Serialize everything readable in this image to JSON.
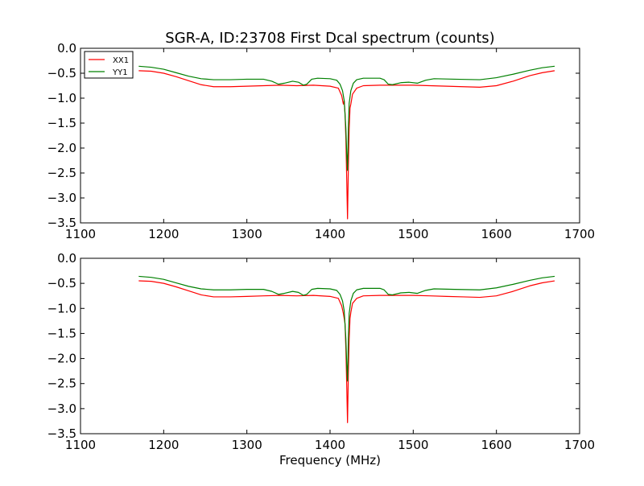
{
  "figure": {
    "title": "SGR-A, ID:23708 First Dcal spectrum (counts)",
    "background": "#ffffff"
  },
  "chart_data": [
    {
      "type": "line",
      "title": "SGR-A, ID:23708 First Dcal spectrum (counts)",
      "xlabel": "",
      "ylabel": "",
      "xlim": [
        1100,
        1700
      ],
      "ylim": [
        -3.5,
        0.0
      ],
      "x_ticks": [
        "1100",
        "1200",
        "1300",
        "1400",
        "1500",
        "1600",
        "1700"
      ],
      "y_ticks": [
        "0.0",
        "−0.5",
        "−1.0",
        "−1.5",
        "−2.0",
        "−2.5",
        "−3.0",
        "−3.5"
      ],
      "grid": false,
      "legend": {
        "placement": "top-left",
        "entries": [
          "XX1",
          "YY1"
        ]
      },
      "series": [
        {
          "name": "XX1",
          "color": "#ff0000",
          "points": [
            [
              1170,
              -0.45
            ],
            [
              1185,
              -0.46
            ],
            [
              1200,
              -0.5
            ],
            [
              1215,
              -0.57
            ],
            [
              1230,
              -0.65
            ],
            [
              1245,
              -0.73
            ],
            [
              1260,
              -0.77
            ],
            [
              1280,
              -0.77
            ],
            [
              1300,
              -0.76
            ],
            [
              1320,
              -0.75
            ],
            [
              1340,
              -0.74
            ],
            [
              1360,
              -0.75
            ],
            [
              1380,
              -0.74
            ],
            [
              1400,
              -0.76
            ],
            [
              1410,
              -0.8
            ],
            [
              1414,
              -0.95
            ],
            [
              1416,
              -1.12
            ],
            [
              1417,
              -1.05
            ],
            [
              1418,
              -1.3
            ],
            [
              1419,
              -1.8
            ],
            [
              1420,
              -2.6
            ],
            [
              1421,
              -3.42
            ],
            [
              1422,
              -2.4
            ],
            [
              1423,
              -1.6
            ],
            [
              1424,
              -1.2
            ],
            [
              1425,
              -1.12
            ],
            [
              1427,
              -0.92
            ],
            [
              1432,
              -0.8
            ],
            [
              1440,
              -0.75
            ],
            [
              1460,
              -0.74
            ],
            [
              1480,
              -0.74
            ],
            [
              1500,
              -0.74
            ],
            [
              1520,
              -0.75
            ],
            [
              1540,
              -0.76
            ],
            [
              1560,
              -0.77
            ],
            [
              1580,
              -0.78
            ],
            [
              1600,
              -0.75
            ],
            [
              1620,
              -0.66
            ],
            [
              1640,
              -0.55
            ],
            [
              1655,
              -0.49
            ],
            [
              1670,
              -0.45
            ]
          ]
        },
        {
          "name": "YY1",
          "color": "#008000",
          "points": [
            [
              1170,
              -0.36
            ],
            [
              1185,
              -0.38
            ],
            [
              1200,
              -0.42
            ],
            [
              1215,
              -0.49
            ],
            [
              1230,
              -0.56
            ],
            [
              1245,
              -0.61
            ],
            [
              1260,
              -0.63
            ],
            [
              1280,
              -0.63
            ],
            [
              1300,
              -0.62
            ],
            [
              1320,
              -0.62
            ],
            [
              1330,
              -0.66
            ],
            [
              1338,
              -0.72
            ],
            [
              1345,
              -0.7
            ],
            [
              1355,
              -0.66
            ],
            [
              1362,
              -0.68
            ],
            [
              1368,
              -0.74
            ],
            [
              1372,
              -0.72
            ],
            [
              1378,
              -0.62
            ],
            [
              1385,
              -0.6
            ],
            [
              1400,
              -0.61
            ],
            [
              1408,
              -0.64
            ],
            [
              1412,
              -0.72
            ],
            [
              1415,
              -0.85
            ],
            [
              1417,
              -1.05
            ],
            [
              1419,
              -1.6
            ],
            [
              1420,
              -2.1
            ],
            [
              1421,
              -2.45
            ],
            [
              1422,
              -1.6
            ],
            [
              1423,
              -1.1
            ],
            [
              1425,
              -0.85
            ],
            [
              1428,
              -0.7
            ],
            [
              1432,
              -0.63
            ],
            [
              1440,
              -0.6
            ],
            [
              1460,
              -0.6
            ],
            [
              1465,
              -0.63
            ],
            [
              1470,
              -0.72
            ],
            [
              1475,
              -0.73
            ],
            [
              1485,
              -0.69
            ],
            [
              1495,
              -0.68
            ],
            [
              1505,
              -0.7
            ],
            [
              1515,
              -0.64
            ],
            [
              1525,
              -0.61
            ],
            [
              1550,
              -0.62
            ],
            [
              1580,
              -0.63
            ],
            [
              1600,
              -0.59
            ],
            [
              1620,
              -0.52
            ],
            [
              1640,
              -0.44
            ],
            [
              1655,
              -0.39
            ],
            [
              1670,
              -0.36
            ]
          ]
        }
      ]
    },
    {
      "type": "line",
      "title": "",
      "xlabel": "Frequency (MHz)",
      "ylabel": "",
      "xlim": [
        1100,
        1700
      ],
      "ylim": [
        -3.5,
        0.0
      ],
      "x_ticks": [
        "1100",
        "1200",
        "1300",
        "1400",
        "1500",
        "1600",
        "1700"
      ],
      "y_ticks": [
        "0.0",
        "−0.5",
        "−1.0",
        "−1.5",
        "−2.0",
        "−2.5",
        "−3.0",
        "−3.5"
      ],
      "grid": false,
      "series": [
        {
          "color": "#ff0000",
          "points": [
            [
              1170,
              -0.45
            ],
            [
              1185,
              -0.46
            ],
            [
              1200,
              -0.5
            ],
            [
              1215,
              -0.57
            ],
            [
              1230,
              -0.65
            ],
            [
              1245,
              -0.73
            ],
            [
              1260,
              -0.77
            ],
            [
              1280,
              -0.77
            ],
            [
              1300,
              -0.76
            ],
            [
              1320,
              -0.75
            ],
            [
              1340,
              -0.74
            ],
            [
              1360,
              -0.75
            ],
            [
              1380,
              -0.74
            ],
            [
              1400,
              -0.76
            ],
            [
              1410,
              -0.8
            ],
            [
              1414,
              -0.95
            ],
            [
              1416,
              -1.1
            ],
            [
              1418,
              -1.3
            ],
            [
              1419,
              -1.8
            ],
            [
              1420,
              -2.5
            ],
            [
              1421,
              -3.28
            ],
            [
              1422,
              -2.3
            ],
            [
              1423,
              -1.6
            ],
            [
              1424,
              -1.2
            ],
            [
              1425,
              -1.08
            ],
            [
              1427,
              -0.9
            ],
            [
              1432,
              -0.8
            ],
            [
              1440,
              -0.75
            ],
            [
              1460,
              -0.74
            ],
            [
              1480,
              -0.74
            ],
            [
              1500,
              -0.74
            ],
            [
              1520,
              -0.75
            ],
            [
              1540,
              -0.76
            ],
            [
              1560,
              -0.77
            ],
            [
              1580,
              -0.78
            ],
            [
              1600,
              -0.75
            ],
            [
              1620,
              -0.66
            ],
            [
              1640,
              -0.55
            ],
            [
              1655,
              -0.49
            ],
            [
              1670,
              -0.45
            ]
          ]
        },
        {
          "color": "#008000",
          "points": [
            [
              1170,
              -0.36
            ],
            [
              1185,
              -0.38
            ],
            [
              1200,
              -0.42
            ],
            [
              1215,
              -0.49
            ],
            [
              1230,
              -0.56
            ],
            [
              1245,
              -0.61
            ],
            [
              1260,
              -0.63
            ],
            [
              1280,
              -0.63
            ],
            [
              1300,
              -0.62
            ],
            [
              1320,
              -0.62
            ],
            [
              1330,
              -0.66
            ],
            [
              1338,
              -0.72
            ],
            [
              1345,
              -0.7
            ],
            [
              1355,
              -0.66
            ],
            [
              1362,
              -0.68
            ],
            [
              1368,
              -0.74
            ],
            [
              1372,
              -0.72
            ],
            [
              1378,
              -0.62
            ],
            [
              1385,
              -0.6
            ],
            [
              1400,
              -0.61
            ],
            [
              1408,
              -0.64
            ],
            [
              1412,
              -0.72
            ],
            [
              1415,
              -0.85
            ],
            [
              1417,
              -1.05
            ],
            [
              1419,
              -1.6
            ],
            [
              1420,
              -2.1
            ],
            [
              1421,
              -2.45
            ],
            [
              1422,
              -1.6
            ],
            [
              1423,
              -1.1
            ],
            [
              1425,
              -0.85
            ],
            [
              1428,
              -0.7
            ],
            [
              1432,
              -0.63
            ],
            [
              1440,
              -0.6
            ],
            [
              1460,
              -0.6
            ],
            [
              1465,
              -0.63
            ],
            [
              1470,
              -0.72
            ],
            [
              1475,
              -0.73
            ],
            [
              1485,
              -0.69
            ],
            [
              1495,
              -0.68
            ],
            [
              1505,
              -0.7
            ],
            [
              1515,
              -0.64
            ],
            [
              1525,
              -0.61
            ],
            [
              1550,
              -0.62
            ],
            [
              1580,
              -0.63
            ],
            [
              1600,
              -0.59
            ],
            [
              1620,
              -0.52
            ],
            [
              1640,
              -0.44
            ],
            [
              1655,
              -0.39
            ],
            [
              1670,
              -0.36
            ]
          ]
        }
      ]
    }
  ]
}
